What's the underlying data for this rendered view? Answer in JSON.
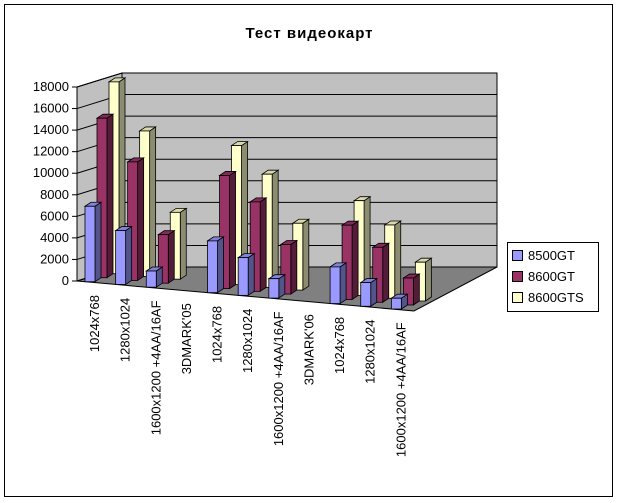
{
  "chart_data": {
    "type": "bar",
    "title": "Тест видеокарт",
    "categories": [
      "1024x768",
      "1280x1024",
      "1600x1200 +4AA/16AF",
      "3DMARK'05",
      "1024x768",
      "1280x1024",
      "1600x1200 +4AA/16AF",
      "3DMARK'06",
      "1024x768",
      "1280x1024",
      "1600x1200 +4AA/16AF"
    ],
    "series": [
      {
        "name": "8500GT",
        "color": "#9999ff",
        "values": [
          7000,
          5000,
          1500,
          null,
          4800,
          3500,
          1800,
          null,
          3400,
          2200,
          1000
        ]
      },
      {
        "name": "8600GT",
        "color": "#993366",
        "values": [
          14800,
          11000,
          4500,
          null,
          10500,
          8300,
          4600,
          null,
          6900,
          5100,
          2500
        ]
      },
      {
        "name": "8600GTS",
        "color": "#ffffcc",
        "values": [
          17800,
          13500,
          6200,
          null,
          12900,
          10500,
          6200,
          null,
          8800,
          6800,
          3600
        ]
      }
    ],
    "y_ticks": [
      "0",
      "2000",
      "4000",
      "6000",
      "8000",
      "10000",
      "12000",
      "14000",
      "16000",
      "18000"
    ],
    "ylim": [
      0,
      18000
    ],
    "grid": true,
    "legend_position": "right"
  }
}
